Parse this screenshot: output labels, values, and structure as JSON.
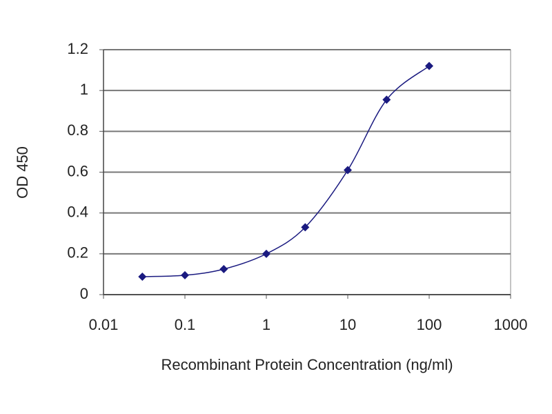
{
  "chart_data": {
    "type": "line",
    "x_label": "Recombinant Protein Concentration (ng/ml)",
    "y_label": "OD 450",
    "x": [
      0.03,
      0.1,
      0.3,
      1,
      3,
      10,
      30,
      100
    ],
    "series": [
      {
        "color": "#1a1a80",
        "values": [
          0.088,
          0.095,
          0.125,
          0.2,
          0.33,
          0.61,
          0.955,
          1.12
        ]
      }
    ],
    "xlim": [
      0.01,
      1000
    ],
    "xticks": [
      0.01,
      0.1,
      1,
      10,
      100,
      1000
    ],
    "xlog": true,
    "ylim": [
      0,
      1.2
    ],
    "yticks": [
      0,
      0.2,
      0.4,
      0.6,
      0.8,
      1,
      1.2
    ],
    "grid": true,
    "smooth": true,
    "markers": "diamond"
  }
}
